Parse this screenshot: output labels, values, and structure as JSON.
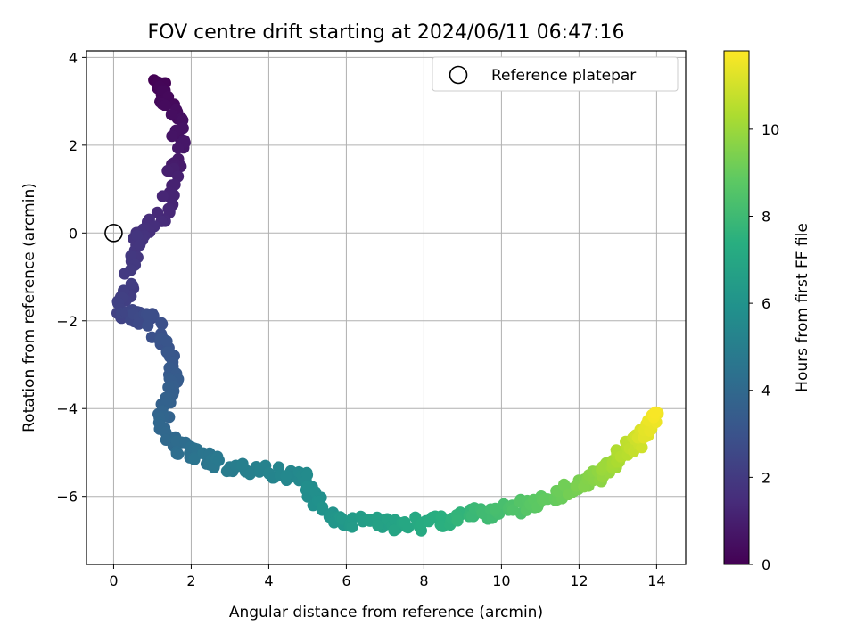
{
  "chart_data": {
    "type": "scatter",
    "title": "FOV centre drift starting at 2024/06/11 06:47:16",
    "xlabel": "Angular distance from reference (arcmin)",
    "ylabel": "Rotation from reference (arcmin)",
    "xlim": [
      -0.7,
      14.75
    ],
    "ylim": [
      -7.55,
      4.15
    ],
    "xticks": [
      0,
      2,
      4,
      6,
      8,
      10,
      12,
      14
    ],
    "yticks": [
      -6,
      -4,
      -2,
      0,
      2,
      4
    ],
    "xtick_labels": [
      "0",
      "2",
      "4",
      "6",
      "8",
      "10",
      "12",
      "14"
    ],
    "ytick_labels": [
      "−6",
      "−4",
      "−2",
      "0",
      "2",
      "4"
    ],
    "grid": true,
    "legend_position": "top-right",
    "colormap": "viridis",
    "colorbar": {
      "label": "Hours from first FF file",
      "range": [
        0,
        11.8
      ],
      "ticks": [
        0,
        2,
        4,
        6,
        8,
        10
      ],
      "tick_labels": [
        "0",
        "2",
        "4",
        "6",
        "8",
        "10"
      ]
    },
    "reference": {
      "label": "Reference platepar",
      "x": 0,
      "y": 0,
      "marker": "open-circle"
    },
    "path_anchors": [
      [
        1.2,
        3.5,
        0.0
      ],
      [
        1.3,
        3.2,
        0.2
      ],
      [
        1.6,
        2.6,
        0.45
      ],
      [
        1.7,
        1.9,
        0.75
      ],
      [
        1.5,
        1.2,
        1.05
      ],
      [
        1.3,
        0.4,
        1.35
      ],
      [
        0.8,
        0.1,
        1.6
      ],
      [
        0.6,
        -0.2,
        1.8
      ],
      [
        0.4,
        -1.2,
        2.05
      ],
      [
        0.1,
        -1.8,
        2.3
      ],
      [
        0.6,
        -1.9,
        2.55
      ],
      [
        1.0,
        -2.0,
        2.8
      ],
      [
        1.4,
        -2.6,
        3.1
      ],
      [
        1.6,
        -3.3,
        3.35
      ],
      [
        1.4,
        -3.8,
        3.6
      ],
      [
        1.2,
        -4.3,
        3.85
      ],
      [
        1.6,
        -4.8,
        4.1
      ],
      [
        2.0,
        -5.0,
        4.4
      ],
      [
        2.6,
        -5.25,
        4.7
      ],
      [
        3.3,
        -5.35,
        5.0
      ],
      [
        4.2,
        -5.45,
        5.3
      ],
      [
        4.9,
        -5.6,
        5.6
      ],
      [
        5.4,
        -6.3,
        5.95
      ],
      [
        6.0,
        -6.6,
        6.3
      ],
      [
        6.8,
        -6.6,
        6.65
      ],
      [
        7.6,
        -6.65,
        7.0
      ],
      [
        8.3,
        -6.55,
        7.35
      ],
      [
        9.0,
        -6.45,
        7.7
      ],
      [
        9.6,
        -6.4,
        8.05
      ],
      [
        10.3,
        -6.25,
        8.4
      ],
      [
        10.9,
        -6.15,
        8.75
      ],
      [
        11.5,
        -5.95,
        9.05
      ],
      [
        12.0,
        -5.75,
        9.35
      ],
      [
        12.4,
        -5.55,
        9.65
      ],
      [
        12.7,
        -5.35,
        9.95
      ],
      [
        13.0,
        -5.15,
        10.25
      ],
      [
        13.3,
        -4.9,
        10.6
      ],
      [
        13.55,
        -4.75,
        10.95
      ],
      [
        13.75,
        -4.55,
        11.3
      ],
      [
        13.95,
        -4.1,
        11.7
      ]
    ]
  }
}
